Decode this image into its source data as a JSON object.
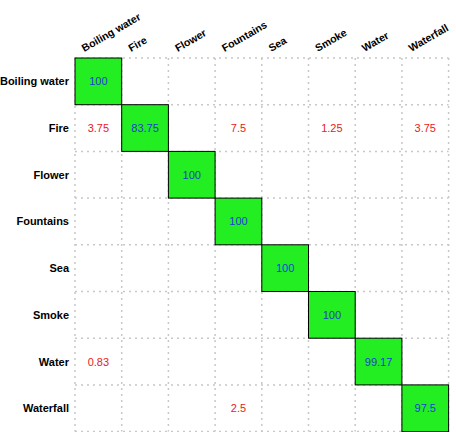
{
  "chart_data": {
    "type": "heatmap",
    "x": [
      "Boiling water",
      "Fire",
      "Flower",
      "Fountains",
      "Sea",
      "Smoke",
      "Water",
      "Waterfall"
    ],
    "y": [
      "Boiling water",
      "Fire",
      "Flower",
      "Fountains",
      "Sea",
      "Smoke",
      "Water",
      "Waterfall"
    ],
    "values": [
      [
        100,
        null,
        null,
        null,
        null,
        null,
        null,
        null
      ],
      [
        3.75,
        83.75,
        null,
        7.5,
        null,
        1.25,
        null,
        3.75
      ],
      [
        null,
        null,
        100,
        null,
        null,
        null,
        null,
        null
      ],
      [
        null,
        null,
        null,
        100,
        null,
        null,
        null,
        null
      ],
      [
        null,
        null,
        null,
        null,
        100,
        null,
        null,
        null
      ],
      [
        null,
        null,
        null,
        null,
        null,
        100,
        null,
        null
      ],
      [
        0.83,
        null,
        null,
        null,
        null,
        null,
        99.17,
        null
      ],
      [
        null,
        null,
        null,
        2.5,
        null,
        null,
        null,
        97.5
      ]
    ],
    "data_labels": true,
    "grid": true
  }
}
